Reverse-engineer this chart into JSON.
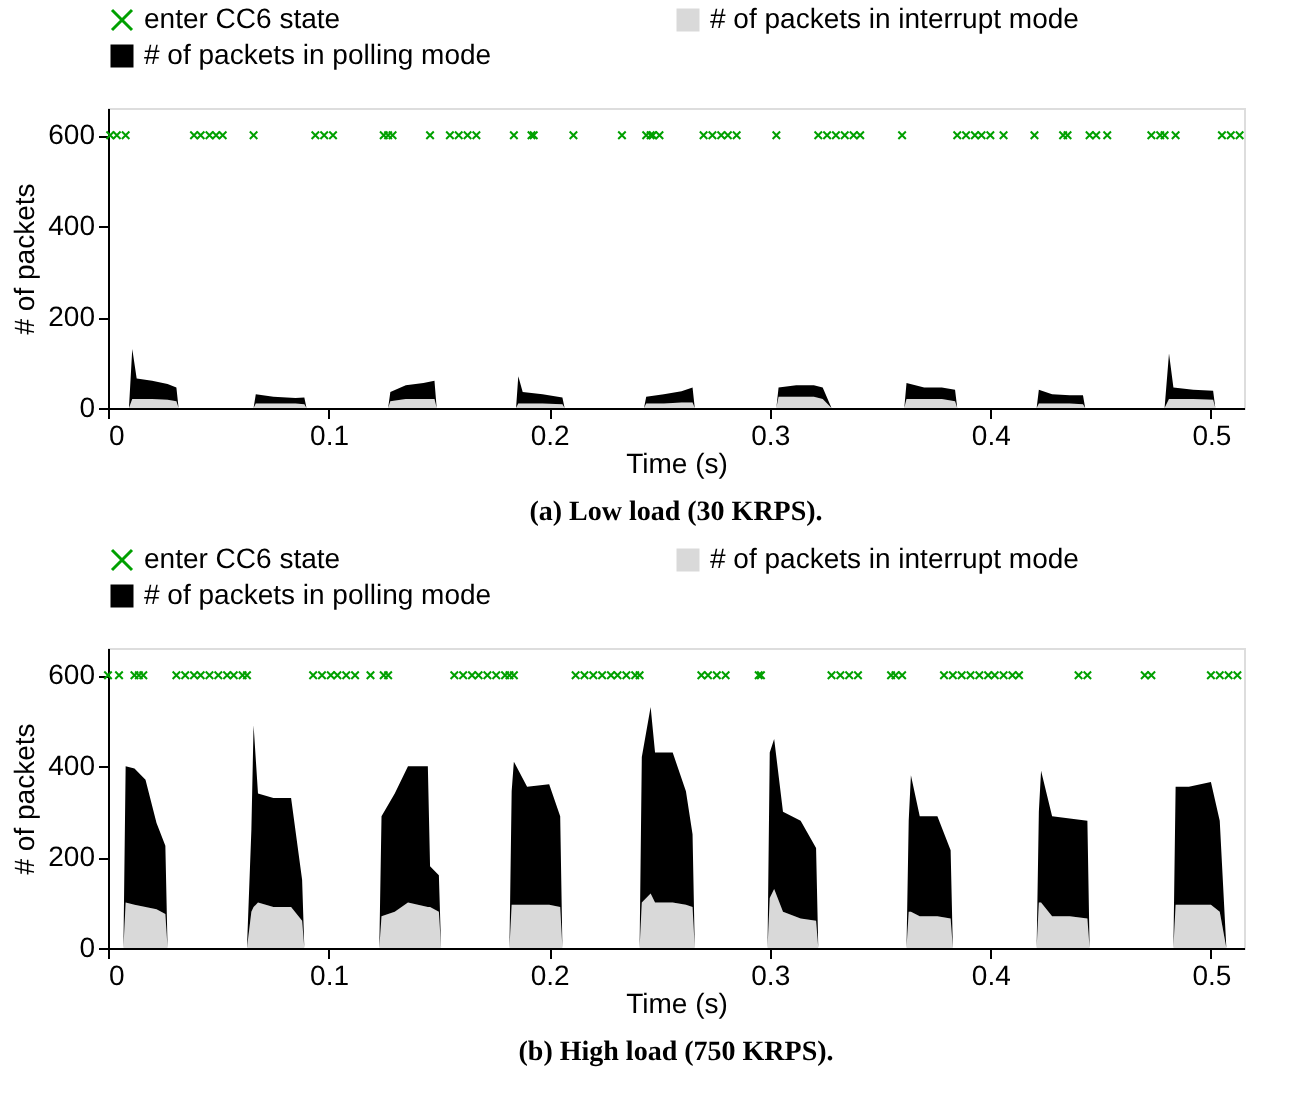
{
  "chart_data": [
    {
      "type": "area",
      "stacked": true,
      "title": "(a) Low load (30 KRPS).",
      "xlabel": "Time (s)",
      "ylabel": "# of packets",
      "xlim": [
        0,
        0.515
      ],
      "xticks": [
        0,
        0.1,
        0.2,
        0.3,
        0.4,
        0.5
      ],
      "ylim": [
        0,
        660
      ],
      "yticks": [
        0,
        200,
        400,
        600
      ],
      "grid": false,
      "legend": "top",
      "series": [
        {
          "name": "enter CC6 state",
          "type": "scatter",
          "marker": "cross",
          "color": "#00a000",
          "x": [
            0.001,
            0.004,
            0.008,
            0.039,
            0.042,
            0.046,
            0.049,
            0.052,
            0.066,
            0.094,
            0.098,
            0.102,
            0.125,
            0.127,
            0.129,
            0.146,
            0.155,
            0.159,
            0.163,
            0.167,
            0.184,
            0.192,
            0.193,
            0.211,
            0.233,
            0.244,
            0.246,
            0.247,
            0.25,
            0.27,
            0.274,
            0.278,
            0.281,
            0.285,
            0.303,
            0.322,
            0.326,
            0.33,
            0.334,
            0.338,
            0.341,
            0.36,
            0.385,
            0.389,
            0.393,
            0.396,
            0.4,
            0.406,
            0.42,
            0.433,
            0.435,
            0.445,
            0.448,
            0.453,
            0.473,
            0.477,
            0.479,
            0.484,
            0.505,
            0.509,
            0.513
          ],
          "values": [
            600,
            600,
            600,
            600,
            600,
            600,
            600,
            600,
            600,
            600,
            600,
            600,
            600,
            600,
            600,
            600,
            600,
            600,
            600,
            600,
            600,
            600,
            600,
            600,
            600,
            600,
            600,
            600,
            600,
            600,
            600,
            600,
            600,
            600,
            600,
            600,
            600,
            600,
            600,
            600,
            600,
            600,
            600,
            600,
            600,
            600,
            600,
            600,
            600,
            600,
            600,
            600,
            600,
            600,
            600,
            600,
            600,
            600,
            600,
            600,
            600
          ]
        },
        {
          "name": "# of packets in interrupt mode",
          "color": "#d9d9d9",
          "x": [
            0.0095,
            0.011,
            0.013,
            0.02,
            0.027,
            0.031,
            0.032,
            0.066,
            0.067,
            0.075,
            0.085,
            0.089,
            0.09,
            0.127,
            0.128,
            0.135,
            0.143,
            0.148,
            0.149,
            0.185,
            0.186,
            0.188,
            0.197,
            0.206,
            0.207,
            0.243,
            0.244,
            0.252,
            0.26,
            0.265,
            0.266,
            0.303,
            0.304,
            0.312,
            0.32,
            0.324,
            0.328,
            0.361,
            0.362,
            0.37,
            0.378,
            0.384,
            0.385,
            0.421,
            0.422,
            0.428,
            0.436,
            0.442,
            0.443,
            0.479,
            0.481,
            0.483,
            0.492,
            0.501,
            0.502
          ],
          "values": [
            0,
            20,
            20,
            20,
            18,
            15,
            0,
            0,
            10,
            10,
            10,
            8,
            0,
            0,
            15,
            20,
            20,
            20,
            0,
            0,
            10,
            10,
            10,
            8,
            0,
            0,
            10,
            10,
            12,
            12,
            0,
            0,
            25,
            25,
            25,
            20,
            0,
            0,
            20,
            20,
            20,
            15,
            0,
            0,
            10,
            10,
            10,
            8,
            0,
            0,
            20,
            20,
            20,
            18,
            0
          ]
        },
        {
          "name": "# of packets in polling mode",
          "color": "#000000",
          "x": [
            0.0095,
            0.011,
            0.013,
            0.02,
            0.027,
            0.031,
            0.032,
            0.066,
            0.067,
            0.075,
            0.085,
            0.089,
            0.09,
            0.127,
            0.128,
            0.135,
            0.143,
            0.148,
            0.149,
            0.185,
            0.186,
            0.188,
            0.197,
            0.206,
            0.207,
            0.243,
            0.244,
            0.252,
            0.26,
            0.265,
            0.266,
            0.303,
            0.304,
            0.312,
            0.32,
            0.324,
            0.328,
            0.361,
            0.362,
            0.37,
            0.378,
            0.384,
            0.385,
            0.421,
            0.422,
            0.428,
            0.436,
            0.442,
            0.443,
            0.479,
            0.481,
            0.483,
            0.492,
            0.501,
            0.502
          ],
          "values": [
            0,
            110,
            45,
            40,
            35,
            30,
            0,
            0,
            20,
            15,
            12,
            15,
            0,
            0,
            20,
            30,
            35,
            40,
            0,
            0,
            60,
            25,
            20,
            15,
            0,
            0,
            15,
            20,
            25,
            33,
            0,
            0,
            20,
            25,
            25,
            25,
            0,
            0,
            35,
            25,
            25,
            25,
            0,
            0,
            30,
            20,
            18,
            20,
            0,
            0,
            100,
            25,
            20,
            20,
            0
          ]
        }
      ]
    },
    {
      "type": "area",
      "stacked": true,
      "title": "(b) High load (750 KRPS).",
      "xlabel": "Time (s)",
      "ylabel": "# of packets",
      "xlim": [
        0,
        0.515
      ],
      "xticks": [
        0,
        0.1,
        0.2,
        0.3,
        0.4,
        0.5
      ],
      "ylim": [
        0,
        660
      ],
      "yticks": [
        0,
        200,
        400,
        600
      ],
      "grid": false,
      "legend": "top",
      "series": [
        {
          "name": "enter CC6 state",
          "type": "scatter",
          "marker": "cross",
          "color": "#00a000",
          "x": [
            0.0,
            0.005,
            0.012,
            0.014,
            0.016,
            0.031,
            0.035,
            0.039,
            0.042,
            0.046,
            0.05,
            0.054,
            0.057,
            0.061,
            0.063,
            0.093,
            0.097,
            0.101,
            0.104,
            0.108,
            0.112,
            0.119,
            0.125,
            0.127,
            0.157,
            0.161,
            0.165,
            0.168,
            0.172,
            0.176,
            0.18,
            0.182,
            0.184,
            0.212,
            0.216,
            0.22,
            0.224,
            0.228,
            0.231,
            0.235,
            0.239,
            0.241,
            0.269,
            0.272,
            0.276,
            0.28,
            0.295,
            0.296,
            0.328,
            0.332,
            0.336,
            0.34,
            0.355,
            0.357,
            0.36,
            0.379,
            0.383,
            0.387,
            0.391,
            0.395,
            0.399,
            0.402,
            0.406,
            0.41,
            0.413,
            0.44,
            0.444,
            0.47,
            0.473,
            0.5,
            0.504,
            0.508,
            0.512
          ],
          "values": [
            600,
            600,
            600,
            600,
            600,
            600,
            600,
            600,
            600,
            600,
            600,
            600,
            600,
            600,
            600,
            600,
            600,
            600,
            600,
            600,
            600,
            600,
            600,
            600,
            600,
            600,
            600,
            600,
            600,
            600,
            600,
            600,
            600,
            600,
            600,
            600,
            600,
            600,
            600,
            600,
            600,
            600,
            600,
            600,
            600,
            600,
            600,
            600,
            600,
            600,
            600,
            600,
            600,
            600,
            600,
            600,
            600,
            600,
            600,
            600,
            600,
            600,
            600,
            600,
            600,
            600,
            600,
            600,
            600,
            600,
            600,
            600,
            600
          ]
        },
        {
          "name": "# of packets in interrupt mode",
          "color": "#d9d9d9",
          "x": [
            0.007,
            0.008,
            0.012,
            0.017,
            0.022,
            0.026,
            0.027,
            0.063,
            0.065,
            0.066,
            0.068,
            0.075,
            0.083,
            0.088,
            0.089,
            0.123,
            0.124,
            0.13,
            0.136,
            0.145,
            0.146,
            0.15,
            0.151,
            0.182,
            0.183,
            0.184,
            0.19,
            0.2,
            0.205,
            0.206,
            0.241,
            0.242,
            0.246,
            0.248,
            0.256,
            0.262,
            0.265,
            0.266,
            0.299,
            0.3,
            0.302,
            0.306,
            0.314,
            0.321,
            0.322,
            0.362,
            0.363,
            0.364,
            0.368,
            0.376,
            0.382,
            0.383,
            0.421,
            0.422,
            0.423,
            0.428,
            0.436,
            0.444,
            0.445,
            0.483,
            0.484,
            0.49,
            0.5,
            0.504,
            0.507
          ],
          "values": [
            0,
            100,
            95,
            90,
            85,
            75,
            0,
            0,
            80,
            90,
            100,
            90,
            90,
            60,
            0,
            0,
            70,
            80,
            100,
            90,
            90,
            80,
            0,
            0,
            95,
            95,
            95,
            95,
            90,
            0,
            0,
            100,
            120,
            100,
            100,
            95,
            90,
            0,
            0,
            110,
            130,
            80,
            65,
            60,
            0,
            0,
            80,
            80,
            70,
            70,
            65,
            0,
            0,
            100,
            100,
            70,
            70,
            65,
            0,
            0,
            95,
            95,
            95,
            80,
            0
          ]
        },
        {
          "name": "# of packets in polling mode",
          "color": "#000000",
          "x": [
            0.007,
            0.008,
            0.012,
            0.017,
            0.022,
            0.026,
            0.027,
            0.063,
            0.065,
            0.066,
            0.068,
            0.075,
            0.083,
            0.088,
            0.089,
            0.123,
            0.124,
            0.13,
            0.136,
            0.145,
            0.146,
            0.15,
            0.151,
            0.182,
            0.183,
            0.184,
            0.19,
            0.2,
            0.205,
            0.206,
            0.241,
            0.242,
            0.246,
            0.248,
            0.256,
            0.262,
            0.265,
            0.266,
            0.299,
            0.3,
            0.302,
            0.306,
            0.314,
            0.321,
            0.322,
            0.362,
            0.363,
            0.364,
            0.368,
            0.376,
            0.382,
            0.383,
            0.421,
            0.422,
            0.423,
            0.428,
            0.436,
            0.444,
            0.445,
            0.483,
            0.484,
            0.49,
            0.5,
            0.504,
            0.507
          ],
          "values": [
            0,
            300,
            300,
            280,
            190,
            150,
            0,
            0,
            180,
            400,
            240,
            240,
            240,
            90,
            0,
            0,
            220,
            260,
            300,
            310,
            90,
            80,
            0,
            0,
            250,
            315,
            260,
            265,
            200,
            0,
            0,
            320,
            410,
            330,
            330,
            250,
            160,
            0,
            0,
            320,
            330,
            220,
            215,
            160,
            0,
            0,
            200,
            300,
            220,
            220,
            150,
            0,
            0,
            200,
            290,
            220,
            215,
            215,
            0,
            0,
            260,
            260,
            270,
            200,
            0
          ]
        }
      ]
    }
  ]
}
